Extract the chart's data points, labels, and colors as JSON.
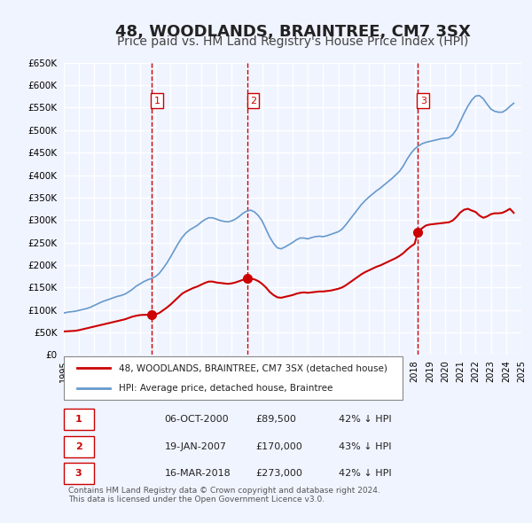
{
  "title": "48, WOODLANDS, BRAINTREE, CM7 3SX",
  "subtitle": "Price paid vs. HM Land Registry's House Price Index (HPI)",
  "title_fontsize": 13,
  "subtitle_fontsize": 10,
  "bg_color": "#f0f4ff",
  "plot_bg_color": "#f0f4ff",
  "grid_color": "#ffffff",
  "ylim": [
    0,
    650000
  ],
  "yticks": [
    0,
    50000,
    100000,
    150000,
    200000,
    250000,
    300000,
    350000,
    400000,
    450000,
    500000,
    550000,
    600000,
    650000
  ],
  "ytick_labels": [
    "£0",
    "£50K",
    "£100K",
    "£150K",
    "£200K",
    "£250K",
    "£300K",
    "£350K",
    "£400K",
    "£450K",
    "£500K",
    "£550K",
    "£600K",
    "£650K"
  ],
  "xlabel_start_year": 1995,
  "xlabel_end_year": 2025,
  "sale_color": "#cc0000",
  "hpi_color": "#6699cc",
  "vline_color": "#cc0000",
  "transactions": [
    {
      "year": 2000.77,
      "price": 89500,
      "label": "1"
    },
    {
      "year": 2007.05,
      "price": 170000,
      "label": "2"
    },
    {
      "year": 2018.21,
      "price": 273000,
      "label": "3"
    }
  ],
  "table_rows": [
    {
      "num": "1",
      "date": "06-OCT-2000",
      "price": "£89,500",
      "hpi": "42% ↓ HPI"
    },
    {
      "num": "2",
      "date": "19-JAN-2007",
      "price": "£170,000",
      "hpi": "43% ↓ HPI"
    },
    {
      "num": "3",
      "date": "16-MAR-2018",
      "price": "£273,000",
      "hpi": "42% ↓ HPI"
    }
  ],
  "legend_label1": "48, WOODLANDS, BRAINTREE, CM7 3SX (detached house)",
  "legend_label2": "HPI: Average price, detached house, Braintree",
  "footer": "Contains HM Land Registry data © Crown copyright and database right 2024.\nThis data is licensed under the Open Government Licence v3.0.",
  "hpi_data_x": [
    1995.0,
    1995.25,
    1995.5,
    1995.75,
    1996.0,
    1996.25,
    1996.5,
    1996.75,
    1997.0,
    1997.25,
    1997.5,
    1997.75,
    1998.0,
    1998.25,
    1998.5,
    1998.75,
    1999.0,
    1999.25,
    1999.5,
    1999.75,
    2000.0,
    2000.25,
    2000.5,
    2000.75,
    2001.0,
    2001.25,
    2001.5,
    2001.75,
    2002.0,
    2002.25,
    2002.5,
    2002.75,
    2003.0,
    2003.25,
    2003.5,
    2003.75,
    2004.0,
    2004.25,
    2004.5,
    2004.75,
    2005.0,
    2005.25,
    2005.5,
    2005.75,
    2006.0,
    2006.25,
    2006.5,
    2006.75,
    2007.0,
    2007.25,
    2007.5,
    2007.75,
    2008.0,
    2008.25,
    2008.5,
    2008.75,
    2009.0,
    2009.25,
    2009.5,
    2009.75,
    2010.0,
    2010.25,
    2010.5,
    2010.75,
    2011.0,
    2011.25,
    2011.5,
    2011.75,
    2012.0,
    2012.25,
    2012.5,
    2012.75,
    2013.0,
    2013.25,
    2013.5,
    2013.75,
    2014.0,
    2014.25,
    2014.5,
    2014.75,
    2015.0,
    2015.25,
    2015.5,
    2015.75,
    2016.0,
    2016.25,
    2016.5,
    2016.75,
    2017.0,
    2017.25,
    2017.5,
    2017.75,
    2018.0,
    2018.25,
    2018.5,
    2018.75,
    2019.0,
    2019.25,
    2019.5,
    2019.75,
    2020.0,
    2020.25,
    2020.5,
    2020.75,
    2021.0,
    2021.25,
    2021.5,
    2021.75,
    2022.0,
    2022.25,
    2022.5,
    2022.75,
    2023.0,
    2023.25,
    2023.5,
    2023.75,
    2024.0,
    2024.25,
    2024.5
  ],
  "hpi_data_y": [
    93000,
    95000,
    96000,
    97000,
    99000,
    101000,
    103000,
    106000,
    110000,
    114000,
    118000,
    121000,
    124000,
    127000,
    130000,
    132000,
    135000,
    140000,
    146000,
    153000,
    158000,
    163000,
    167000,
    170000,
    174000,
    181000,
    192000,
    204000,
    218000,
    233000,
    248000,
    261000,
    271000,
    278000,
    283000,
    288000,
    295000,
    301000,
    305000,
    305000,
    302000,
    299000,
    297000,
    296000,
    298000,
    302000,
    308000,
    315000,
    320000,
    322000,
    318000,
    310000,
    298000,
    280000,
    262000,
    248000,
    238000,
    236000,
    240000,
    245000,
    250000,
    256000,
    260000,
    260000,
    258000,
    261000,
    263000,
    264000,
    263000,
    265000,
    268000,
    271000,
    274000,
    280000,
    290000,
    301000,
    312000,
    323000,
    334000,
    343000,
    351000,
    358000,
    365000,
    371000,
    378000,
    385000,
    392000,
    400000,
    408000,
    420000,
    435000,
    448000,
    458000,
    465000,
    470000,
    473000,
    475000,
    477000,
    479000,
    481000,
    482000,
    483000,
    490000,
    502000,
    520000,
    538000,
    554000,
    567000,
    576000,
    577000,
    570000,
    558000,
    547000,
    542000,
    540000,
    540000,
    545000,
    553000,
    560000
  ],
  "sale_data_x": [
    1995.0,
    1995.25,
    1995.5,
    1995.75,
    1996.0,
    1996.25,
    1996.5,
    1996.75,
    1997.0,
    1997.25,
    1997.5,
    1997.75,
    1998.0,
    1998.25,
    1998.5,
    1998.75,
    1999.0,
    1999.25,
    1999.5,
    1999.75,
    2000.0,
    2000.25,
    2000.5,
    2000.77,
    2001.0,
    2001.25,
    2001.5,
    2001.75,
    2002.0,
    2002.25,
    2002.5,
    2002.75,
    2003.0,
    2003.25,
    2003.5,
    2003.75,
    2004.0,
    2004.25,
    2004.5,
    2004.75,
    2005.0,
    2005.25,
    2005.5,
    2005.75,
    2006.0,
    2006.25,
    2006.5,
    2006.75,
    2007.0,
    2007.05,
    2007.5,
    2007.75,
    2008.0,
    2008.25,
    2008.5,
    2008.75,
    2009.0,
    2009.25,
    2009.5,
    2009.75,
    2010.0,
    2010.25,
    2010.5,
    2010.75,
    2011.0,
    2011.25,
    2011.5,
    2011.75,
    2012.0,
    2012.25,
    2012.5,
    2012.75,
    2013.0,
    2013.25,
    2013.5,
    2013.75,
    2014.0,
    2014.25,
    2014.5,
    2014.75,
    2015.0,
    2015.25,
    2015.5,
    2015.75,
    2016.0,
    2016.25,
    2016.5,
    2016.75,
    2017.0,
    2017.25,
    2017.5,
    2017.75,
    2018.0,
    2018.21,
    2018.5,
    2018.75,
    2019.0,
    2019.25,
    2019.5,
    2019.75,
    2020.0,
    2020.25,
    2020.5,
    2020.75,
    2021.0,
    2021.25,
    2021.5,
    2021.75,
    2022.0,
    2022.25,
    2022.5,
    2022.75,
    2023.0,
    2023.25,
    2023.5,
    2023.75,
    2024.0,
    2024.25,
    2024.5
  ],
  "sale_data_y": [
    52000,
    52500,
    53000,
    53500,
    55000,
    57000,
    59000,
    61000,
    63000,
    65000,
    67000,
    69000,
    71000,
    73000,
    75000,
    77000,
    79000,
    82000,
    85000,
    87000,
    88500,
    89000,
    89000,
    89500,
    90000,
    93000,
    99000,
    105000,
    112000,
    120000,
    128000,
    136000,
    141000,
    145000,
    149000,
    152000,
    156000,
    160000,
    163000,
    163000,
    161000,
    160000,
    159000,
    158000,
    159000,
    161000,
    164000,
    167000,
    169500,
    170000,
    168000,
    164000,
    158000,
    150000,
    140000,
    133000,
    128000,
    127000,
    129000,
    131000,
    133000,
    136000,
    138000,
    139000,
    138000,
    139000,
    140000,
    141000,
    141000,
    142000,
    143000,
    145000,
    147000,
    150000,
    155000,
    161000,
    167000,
    173000,
    179000,
    184000,
    188000,
    192000,
    196000,
    199000,
    203000,
    207000,
    211000,
    215000,
    220000,
    226000,
    234000,
    241000,
    247000,
    273000,
    282000,
    288000,
    290000,
    291000,
    292000,
    293000,
    294000,
    295000,
    299000,
    307000,
    317000,
    323000,
    325000,
    321000,
    318000,
    310000,
    305000,
    308000,
    313000,
    315000,
    315000,
    316000,
    320000,
    325000,
    316000
  ]
}
